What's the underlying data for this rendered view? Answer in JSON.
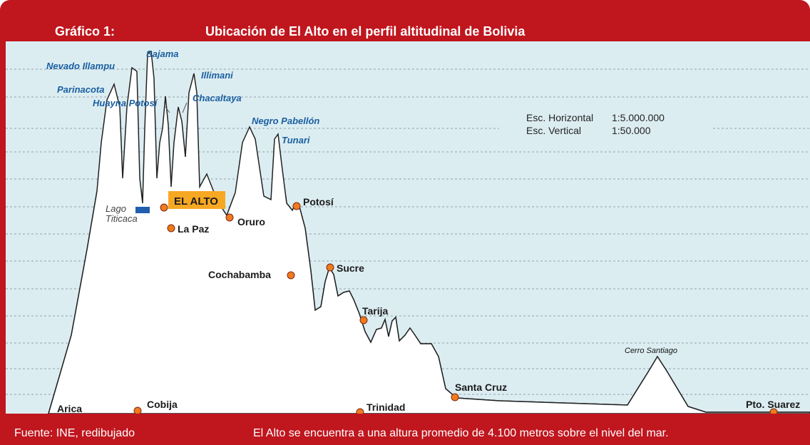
{
  "header": {
    "label": "Gráfico 1:",
    "title": "Ubicación de El Alto en el perfil altitudinal de Bolivia"
  },
  "scale": {
    "horizontal_label": "Esc. Horizontal",
    "horizontal_value": "1:5.000.000",
    "vertical_label": "Esc. Vertical",
    "vertical_value": "1:50.000"
  },
  "peaks": [
    "Nevado Illampu",
    "Sajama",
    "Illimani",
    "Parinacota",
    "Huayna Potosí",
    "Chacaltaya",
    "Negro Pabellón",
    "Tunari",
    "Cerro Santiago"
  ],
  "highlight": "EL ALTO",
  "lake": {
    "line1": "Lago",
    "line2": "Titicaca"
  },
  "cities": [
    "Potosí",
    "Oruro",
    "La Paz",
    "Cochabamba",
    "Sucre",
    "Tarija",
    "Santa Cruz",
    "Arica",
    "Cobija",
    "Trinidad",
    "Pto. Suarez"
  ],
  "footer": {
    "source": "Fuente: INE, redibujado",
    "note": "El Alto se encuentra a una altura promedio de 4.100 metros sobre el nivel del mar."
  }
}
